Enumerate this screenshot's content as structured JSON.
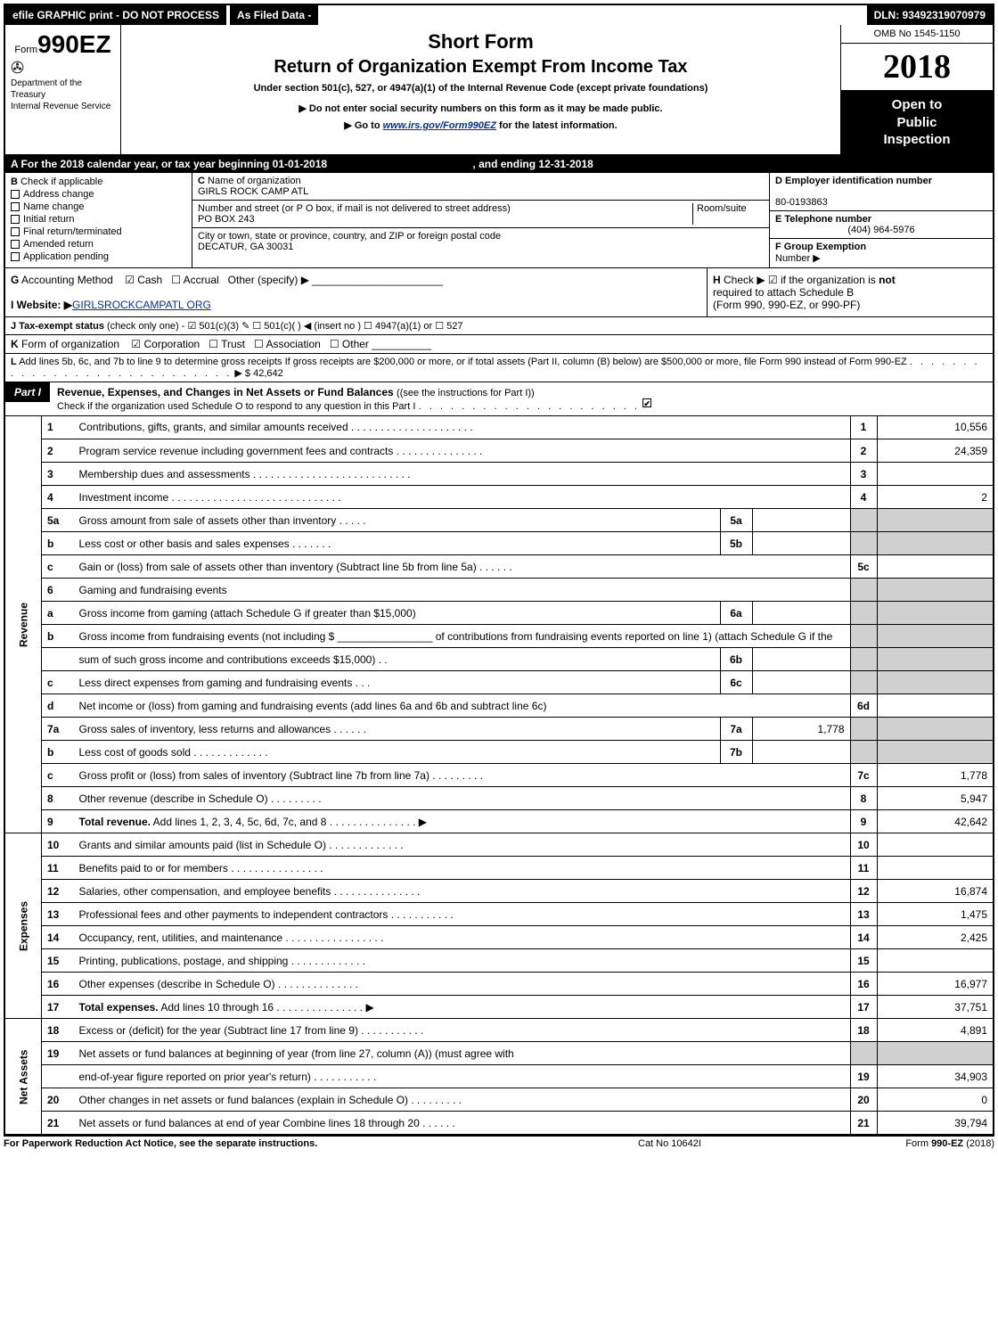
{
  "top": {
    "left": "efile GRAPHIC print - DO NOT PROCESS",
    "mid": "As Filed Data -",
    "right": "DLN: 93492319070979"
  },
  "header": {
    "form_prefix": "Form",
    "form_number": "990EZ",
    "dept1": "Department of the",
    "dept2": "Treasury",
    "dept3": "Internal Revenue Service",
    "short_form": "Short Form",
    "title": "Return of Organization Exempt From Income Tax",
    "subtitle": "Under section 501(c), 527, or 4947(a)(1) of the Internal Revenue Code (except private foundations)",
    "sub2": "Do not enter social security numbers on this form as it may be made public.",
    "sub3_pre": "Go to ",
    "sub3_link": "www.irs.gov/Form990EZ",
    "sub3_post": " for the latest information.",
    "omb": "OMB No 1545-1150",
    "year": "2018",
    "open_to": "Open to",
    "public": "Public",
    "inspection": "Inspection"
  },
  "row_a": {
    "text_pre": "A  For the 2018 calendar year, or tax year beginning ",
    "begin": "01-01-2018",
    "mid": " , and ending ",
    "end": "12-31-2018"
  },
  "section_b": {
    "b_label": "B",
    "b_text": "Check if applicable",
    "options": [
      "Address change",
      "Name change",
      "Initial return",
      "Final return/terminated",
      "Amended return",
      "Application pending"
    ]
  },
  "section_c": {
    "c_label": "C",
    "name_label": "Name of organization",
    "name": "GIRLS ROCK CAMP ATL",
    "addr_label": "Number and street (or P O box, if mail is not delivered to street address)",
    "room_label": "Room/suite",
    "addr": "PO BOX 243",
    "city_label": "City or town, state or province, country, and ZIP or foreign postal code",
    "city": "DECATUR, GA  30031"
  },
  "section_d": {
    "d_label": "D Employer identification number",
    "ein": "80-0193863",
    "e_label": "E Telephone number",
    "phone": "(404) 964-5976",
    "f_label": "F Group Exemption",
    "f_label2": "Number"
  },
  "row_g": {
    "label": "G",
    "text": "Accounting Method",
    "cash": "Cash",
    "accrual": "Accrual",
    "other": "Other (specify) ▶",
    "h_label": "H",
    "h_text1": "Check ▶    ☑ if the organization is ",
    "h_bold": "not",
    "h_text2": "required to attach Schedule B",
    "h_text3": "(Form 990, 990-EZ, or 990-PF)"
  },
  "row_i": {
    "label": "I Website: ▶",
    "value": "GIRLSROCKCAMPATL ORG"
  },
  "row_j": {
    "label": "J Tax-exempt status",
    "text": " (check only one) - ☑ 501(c)(3) ✎ ☐ 501(c)( ) ◀ (insert no ) ☐ 4947(a)(1) or ☐ 527"
  },
  "row_k": {
    "label": "K",
    "text": "Form of organization",
    "corp": "Corporation",
    "trust": "Trust",
    "assoc": "Association",
    "other": "Other"
  },
  "row_l": {
    "label": "L",
    "text": "Add lines 5b, 6c, and 7b to line 9 to determine gross receipts  If gross receipts are $200,000 or more, or if total assets (Part II, column (B) below) are $500,000 or more, file Form 990 instead of Form 990-EZ",
    "dots": ". . . . . . . . . . . . . . . . . . . . . . . . . . . .",
    "arrow": "▶",
    "amount": "$ 42,642"
  },
  "part1": {
    "label": "Part I",
    "title": "Revenue, Expenses, and Changes in Net Assets or Fund Balances",
    "title_paren": "(see the instructions for Part I)",
    "sub": "Check if the organization used Schedule O to respond to any question in this Part I",
    "sub_dots": ". . . . . . . . . . . . . . . . . . . . .",
    "checked": "☑"
  },
  "sections": {
    "revenue": "Revenue",
    "expenses": "Expenses",
    "netassets": "Net Assets"
  },
  "lines": [
    {
      "n": "1",
      "desc": "Contributions, gifts, grants, and similar amounts received . . . . . . . . . . . . . . . . . . . . .",
      "mn": "1",
      "mv": "10,556",
      "type": "main"
    },
    {
      "n": "2",
      "desc": "Program service revenue including government fees and contracts . . . . . . . . . . . . . . .",
      "mn": "2",
      "mv": "24,359",
      "type": "main"
    },
    {
      "n": "3",
      "desc": "Membership dues and assessments . . . . . . . . . . . . . . . . . . . . . . . . . . .",
      "mn": "3",
      "mv": "",
      "type": "main"
    },
    {
      "n": "4",
      "desc": "Investment income . . . . . . . . . . . . . . . . . . . . . . . . . . . . .",
      "mn": "4",
      "mv": "2",
      "type": "main"
    },
    {
      "n": "5a",
      "desc": "Gross amount from sale of assets other than inventory . . . . .",
      "sn": "5a",
      "sv": "",
      "type": "sub_shade"
    },
    {
      "n": "b",
      "desc": "Less  cost or other basis and sales expenses . . . . . . .",
      "sn": "5b",
      "sv": "",
      "type": "sub_shade"
    },
    {
      "n": "c",
      "desc": "Gain or (loss) from sale of assets other than inventory (Subtract line 5b from line 5a) . . . . . .",
      "mn": "5c",
      "mv": "",
      "type": "main"
    },
    {
      "n": "6",
      "desc": "Gaming and fundraising events",
      "type": "plain_shade"
    },
    {
      "n": "a",
      "desc": "Gross income from gaming (attach Schedule G if greater than $15,000)",
      "sn": "6a",
      "sv": "",
      "type": "sub_shade"
    },
    {
      "n": "b",
      "desc": "Gross income from fundraising events (not including $ ________________ of contributions from fundraising events reported on line 1) (attach Schedule G if the",
      "type": "plain_shade"
    },
    {
      "n": "",
      "desc": "sum of such gross income and contributions exceeds $15,000)    .   .",
      "sn": "6b",
      "sv": "",
      "type": "sub_shade"
    },
    {
      "n": "c",
      "desc": "Less  direct expenses from gaming and fundraising events     .   .   .",
      "sn": "6c",
      "sv": "",
      "type": "sub_shade"
    },
    {
      "n": "d",
      "desc": "Net income or (loss) from gaming and fundraising events (add lines 6a and 6b and subtract line 6c)",
      "mn": "6d",
      "mv": "",
      "type": "main"
    },
    {
      "n": "7a",
      "desc": "Gross sales of inventory, less returns and allowances . . . . . .",
      "sn": "7a",
      "sv": "1,778",
      "type": "sub_shade"
    },
    {
      "n": "b",
      "desc": "Less  cost of goods sold                .   .   .   .   .   .   .   .   .   .   .   .   .",
      "sn": "7b",
      "sv": "",
      "type": "sub_shade"
    },
    {
      "n": "c",
      "desc": "Gross profit or (loss) from sales of inventory (Subtract line 7b from line 7a) . . . . . . . . .",
      "mn": "7c",
      "mv": "1,778",
      "type": "main"
    },
    {
      "n": "8",
      "desc": "Other revenue (describe in Schedule O)                            .   .   .   .   .   .   .   .   .",
      "mn": "8",
      "mv": "5,947",
      "type": "main"
    },
    {
      "n": "9",
      "desc": "<b>Total revenue.</b> Add lines 1, 2, 3, 4, 5c, 6d, 7c, and 8 . . . . . . . . . . . . . . .   ▶",
      "mn": "9",
      "mv": "42,642",
      "type": "main",
      "bold": true
    }
  ],
  "exp_lines": [
    {
      "n": "10",
      "desc": "Grants and similar amounts paid (list in Schedule O)            .   .   .   .   .   .   .   .   .   .   .   .   .",
      "mn": "10",
      "mv": ""
    },
    {
      "n": "11",
      "desc": "Benefits paid to or for members                    .   .   .   .   .   .   .   .   .   .   .   .   .   .   .   .",
      "mn": "11",
      "mv": ""
    },
    {
      "n": "12",
      "desc": "Salaries, other compensation, and employee benefits .   .   .   .   .   .   .   .   .   .   .   .   .   .   .",
      "mn": "12",
      "mv": "16,874"
    },
    {
      "n": "13",
      "desc": "Professional fees and other payments to independent contractors  .   .   .   .   .   .   .   .   .   .   .",
      "mn": "13",
      "mv": "1,475"
    },
    {
      "n": "14",
      "desc": "Occupancy, rent, utilities, and maintenance .   .   .   .   .   .   .   .   .   .   .   .   .   .   .   .   .",
      "mn": "14",
      "mv": "2,425"
    },
    {
      "n": "15",
      "desc": "Printing, publications, postage, and shipping              .   .   .   .   .   .   .   .   .   .   .   .   .",
      "mn": "15",
      "mv": ""
    },
    {
      "n": "16",
      "desc": "Other expenses (describe in Schedule O)              .   .   .   .   .   .   .   .   .   .   .   .   .   .",
      "mn": "16",
      "mv": "16,977"
    },
    {
      "n": "17",
      "desc": "<b>Total expenses.</b> Add lines 10 through 16       .   .   .   .   .   .   .   .   .   .   .   .   .   .   .   ▶",
      "mn": "17",
      "mv": "37,751",
      "bold": true
    }
  ],
  "net_lines": [
    {
      "n": "18",
      "desc": "Excess or (deficit) for the year (Subtract line 17 from line 9)      .   .   .   .   .   .   .   .   .   .   .",
      "mn": "18",
      "mv": "4,891"
    },
    {
      "n": "19",
      "desc": "Net assets or fund balances at beginning of year (from line 27, column (A)) (must agree with",
      "type": "plain_shade"
    },
    {
      "n": "",
      "desc": "end-of-year figure reported on prior year's return)               .   .   .   .   .   .   .   .   .   .   .",
      "mn": "19",
      "mv": "34,903"
    },
    {
      "n": "20",
      "desc": "Other changes in net assets or fund balances (explain in Schedule O)   .   .   .   .   .   .   .   .   .",
      "mn": "20",
      "mv": "0"
    },
    {
      "n": "21",
      "desc": "Net assets or fund balances at end of year  Combine lines 18 through 20       .   .   .   .   .   .",
      "mn": "21",
      "mv": "39,794"
    }
  ],
  "footer": {
    "left": "For Paperwork Reduction Act Notice, see the separate instructions.",
    "mid": "Cat No 10642I",
    "right_pre": "Form ",
    "right_bold": "990-EZ",
    "right_post": " (2018)"
  }
}
